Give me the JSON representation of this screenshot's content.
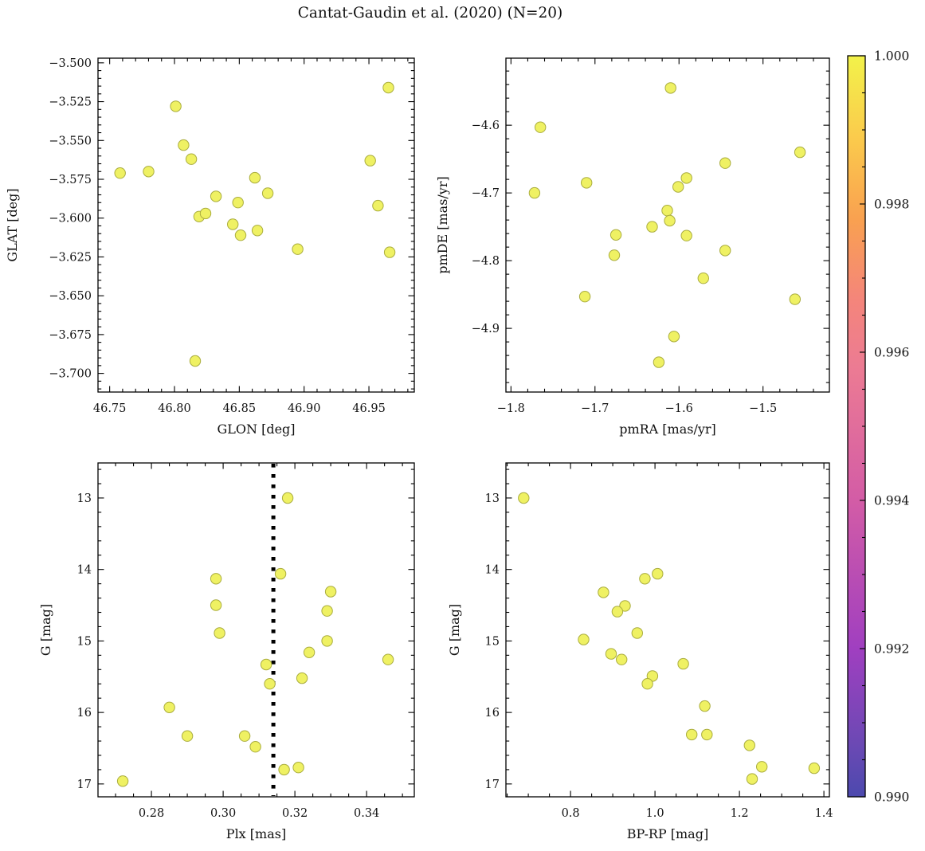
{
  "title": "Cantat-Gaudin et al. (2020) (N=20)",
  "colors": {
    "marker_fill": "#eff163",
    "marker_edge": "#aaad3f",
    "axis": "#000000",
    "text": "#111111",
    "vline": "#000000"
  },
  "chart_data": [
    {
      "type": "scatter",
      "name": "glon-glat",
      "xlabel": "GLON [deg]",
      "ylabel": "GLAT [deg]",
      "xlim": [
        46.741,
        46.985
      ],
      "ylim_top": -3.497,
      "ylim_bottom": -3.712,
      "xticks": [
        {
          "v": 46.75,
          "l": "46.75"
        },
        {
          "v": 46.8,
          "l": "46.80"
        },
        {
          "v": 46.85,
          "l": "46.85"
        },
        {
          "v": 46.9,
          "l": "46.90"
        },
        {
          "v": 46.95,
          "l": "46.95"
        }
      ],
      "yticks": [
        {
          "v": -3.5,
          "l": "−3.500"
        },
        {
          "v": -3.525,
          "l": "−3.525"
        },
        {
          "v": -3.55,
          "l": "−3.550"
        },
        {
          "v": -3.575,
          "l": "−3.575"
        },
        {
          "v": -3.6,
          "l": "−3.600"
        },
        {
          "v": -3.625,
          "l": "−3.625"
        },
        {
          "v": -3.65,
          "l": "−3.650"
        },
        {
          "v": -3.675,
          "l": "−3.675"
        },
        {
          "v": -3.7,
          "l": "−3.700"
        }
      ],
      "xminor": 0.01,
      "yminor": 0.005,
      "points": [
        [
          46.758,
          -3.571
        ],
        [
          46.78,
          -3.57
        ],
        [
          46.801,
          -3.528
        ],
        [
          46.807,
          -3.553
        ],
        [
          46.813,
          -3.562
        ],
        [
          46.816,
          -3.692
        ],
        [
          46.819,
          -3.599
        ],
        [
          46.824,
          -3.597
        ],
        [
          46.832,
          -3.586
        ],
        [
          46.845,
          -3.604
        ],
        [
          46.849,
          -3.59
        ],
        [
          46.851,
          -3.611
        ],
        [
          46.862,
          -3.574
        ],
        [
          46.864,
          -3.608
        ],
        [
          46.872,
          -3.584
        ],
        [
          46.895,
          -3.62
        ],
        [
          46.951,
          -3.563
        ],
        [
          46.957,
          -3.592
        ],
        [
          46.965,
          -3.516
        ],
        [
          46.966,
          -3.622
        ]
      ]
    },
    {
      "type": "scatter",
      "name": "pmra-pmde",
      "xlabel": "pmRA [mas/yr]",
      "ylabel": "pmDE [mas/yr]",
      "xlim": [
        -1.806,
        -1.421
      ],
      "ylim_top": -4.501,
      "ylim_bottom": -4.994,
      "xticks": [
        {
          "v": -1.8,
          "l": "−1.8"
        },
        {
          "v": -1.7,
          "l": "−1.7"
        },
        {
          "v": -1.6,
          "l": "−1.6"
        },
        {
          "v": -1.5,
          "l": "−1.5"
        }
      ],
      "yticks": [
        {
          "v": -4.6,
          "l": "−4.6"
        },
        {
          "v": -4.7,
          "l": "−4.7"
        },
        {
          "v": -4.8,
          "l": "−4.8"
        },
        {
          "v": -4.9,
          "l": "−4.9"
        }
      ],
      "xminor": 0.02,
      "yminor": 0.02,
      "points": [
        [
          -1.61,
          -4.545
        ],
        [
          -1.765,
          -4.603
        ],
        [
          -1.456,
          -4.64
        ],
        [
          -1.545,
          -4.656
        ],
        [
          -1.591,
          -4.678
        ],
        [
          -1.601,
          -4.691
        ],
        [
          -1.71,
          -4.685
        ],
        [
          -1.772,
          -4.7
        ],
        [
          -1.614,
          -4.726
        ],
        [
          -1.611,
          -4.741
        ],
        [
          -1.632,
          -4.75
        ],
        [
          -1.675,
          -4.762
        ],
        [
          -1.591,
          -4.763
        ],
        [
          -1.545,
          -4.785
        ],
        [
          -1.677,
          -4.792
        ],
        [
          -1.571,
          -4.826
        ],
        [
          -1.712,
          -4.853
        ],
        [
          -1.462,
          -4.857
        ],
        [
          -1.606,
          -4.912
        ],
        [
          -1.624,
          -4.95
        ]
      ]
    },
    {
      "type": "scatter",
      "name": "plx-g",
      "xlabel": "Plx [mas]",
      "ylabel": "G [mag]",
      "xlim": [
        0.2651,
        0.3533
      ],
      "ylim_top": 12.51,
      "ylim_bottom": 17.18,
      "xticks": [
        {
          "v": 0.28,
          "l": "0.28"
        },
        {
          "v": 0.3,
          "l": "0.30"
        },
        {
          "v": 0.32,
          "l": "0.32"
        },
        {
          "v": 0.34,
          "l": "0.34"
        }
      ],
      "yticks": [
        {
          "v": 13,
          "l": "13"
        },
        {
          "v": 14,
          "l": "14"
        },
        {
          "v": 15,
          "l": "15"
        },
        {
          "v": 16,
          "l": "16"
        },
        {
          "v": 17,
          "l": "17"
        }
      ],
      "xminor": 0.005,
      "yminor": 0.2,
      "vline": 0.314,
      "points": [
        [
          0.318,
          13.0
        ],
        [
          0.316,
          14.06
        ],
        [
          0.298,
          14.13
        ],
        [
          0.33,
          14.31
        ],
        [
          0.298,
          14.5
        ],
        [
          0.329,
          14.58
        ],
        [
          0.299,
          14.89
        ],
        [
          0.329,
          15.0
        ],
        [
          0.324,
          15.16
        ],
        [
          0.346,
          15.26
        ],
        [
          0.312,
          15.33
        ],
        [
          0.322,
          15.52
        ],
        [
          0.313,
          15.6
        ],
        [
          0.285,
          15.93
        ],
        [
          0.29,
          16.33
        ],
        [
          0.306,
          16.33
        ],
        [
          0.309,
          16.48
        ],
        [
          0.317,
          16.8
        ],
        [
          0.321,
          16.77
        ],
        [
          0.272,
          16.96
        ]
      ]
    },
    {
      "type": "scatter",
      "name": "bprp-g",
      "xlabel": "BP-RP [mag]",
      "ylabel": "G [mag]",
      "xlim": [
        0.647,
        1.413
      ],
      "ylim_top": 12.51,
      "ylim_bottom": 17.18,
      "xticks": [
        {
          "v": 0.8,
          "l": "0.8"
        },
        {
          "v": 1.0,
          "l": "1.0"
        },
        {
          "v": 1.2,
          "l": "1.2"
        },
        {
          "v": 1.4,
          "l": "1.4"
        }
      ],
      "yticks": [
        {
          "v": 13,
          "l": "13"
        },
        {
          "v": 14,
          "l": "14"
        },
        {
          "v": 15,
          "l": "15"
        },
        {
          "v": 16,
          "l": "16"
        },
        {
          "v": 17,
          "l": "17"
        }
      ],
      "xminor": 0.05,
      "yminor": 0.2,
      "points": [
        [
          0.689,
          13.0
        ],
        [
          1.006,
          14.06
        ],
        [
          0.976,
          14.13
        ],
        [
          0.878,
          14.32
        ],
        [
          0.929,
          14.51
        ],
        [
          0.911,
          14.59
        ],
        [
          0.958,
          14.89
        ],
        [
          0.831,
          14.98
        ],
        [
          0.896,
          15.18
        ],
        [
          0.921,
          15.26
        ],
        [
          1.067,
          15.32
        ],
        [
          0.994,
          15.49
        ],
        [
          0.982,
          15.6
        ],
        [
          1.118,
          15.91
        ],
        [
          1.087,
          16.31
        ],
        [
          1.123,
          16.31
        ],
        [
          1.224,
          16.46
        ],
        [
          1.253,
          16.76
        ],
        [
          1.23,
          16.93
        ],
        [
          1.377,
          16.78
        ]
      ]
    }
  ],
  "colorbar": {
    "vmin": 0.99,
    "vmax": 1.0,
    "minor_step": 0.0005,
    "ticks": [
      {
        "v": 1.0,
        "l": "1.000"
      },
      {
        "v": 0.998,
        "l": "0.998"
      },
      {
        "v": 0.996,
        "l": "0.996"
      },
      {
        "v": 0.994,
        "l": "0.994"
      },
      {
        "v": 0.992,
        "l": "0.992"
      },
      {
        "v": 0.99,
        "l": "0.990"
      }
    ],
    "gradient": [
      {
        "p": 0.0,
        "c": "#f2f24a"
      },
      {
        "p": 0.11,
        "c": "#fbcb4c"
      },
      {
        "p": 0.22,
        "c": "#f9a150"
      },
      {
        "p": 0.33,
        "c": "#f4857b"
      },
      {
        "p": 0.42,
        "c": "#ec7b93"
      },
      {
        "p": 0.6,
        "c": "#d35ca6"
      },
      {
        "p": 0.8,
        "c": "#a03fc0"
      },
      {
        "p": 0.93,
        "c": "#6b49b4"
      },
      {
        "p": 1.0,
        "c": "#4c49ae"
      }
    ]
  }
}
